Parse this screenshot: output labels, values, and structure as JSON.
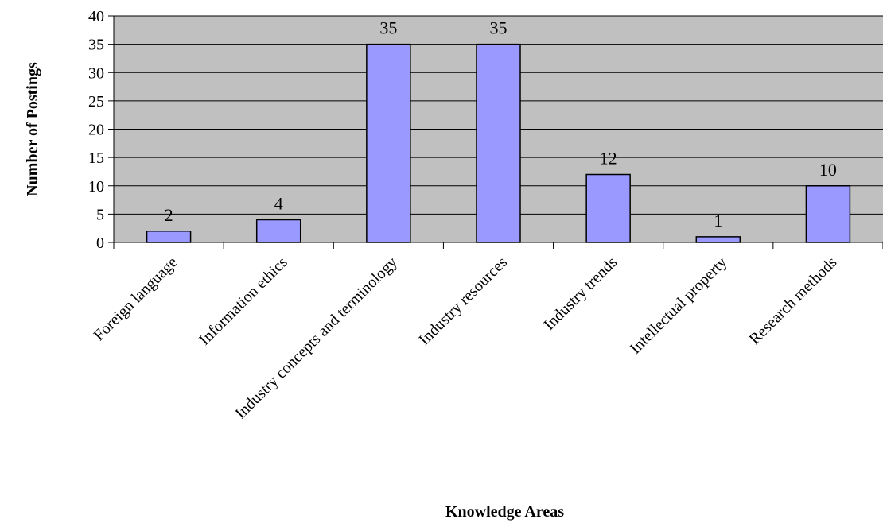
{
  "chart_data": {
    "type": "bar",
    "title": "",
    "xlabel": "Knowledge Areas",
    "ylabel": "Number of Postings",
    "categories": [
      "Foreign language",
      "Information ethics",
      "Industry concepts and terminology",
      "Industry resources",
      "Industry trends",
      "Intellectual property",
      "Research methods"
    ],
    "values": [
      2,
      4,
      35,
      35,
      12,
      1,
      10
    ],
    "ylim": [
      0,
      40
    ],
    "yticks": [
      0,
      5,
      10,
      15,
      20,
      25,
      30,
      35,
      40
    ],
    "grid": true,
    "legend": "none",
    "data_labels": true,
    "colors": {
      "bar_fill": "#9999FF",
      "bar_stroke": "#000000",
      "plot_background": "#C0C0C0",
      "gridline": "#000000"
    }
  }
}
